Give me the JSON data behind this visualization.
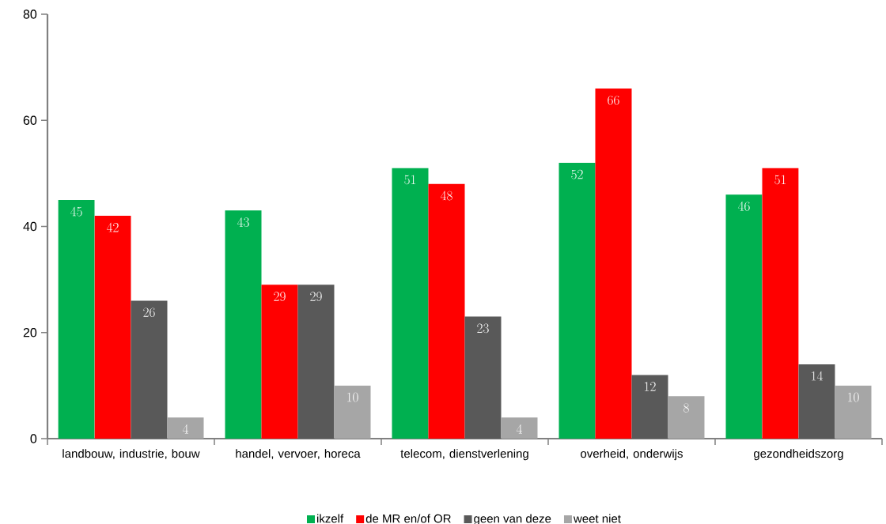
{
  "chart_data": {
    "type": "bar",
    "categories": [
      "landbouw, industrie, bouw",
      "handel, vervoer, horeca",
      "telecom, dienstverlening",
      "overheid, onderwijs",
      "gezondheidszorg"
    ],
    "series": [
      {
        "name": "ikzelf",
        "color": "#00b050",
        "values": [
          45,
          43,
          51,
          52,
          46
        ]
      },
      {
        "name": "de MR en/of OR",
        "color": "#ff0000",
        "values": [
          42,
          29,
          48,
          66,
          51
        ]
      },
      {
        "name": "geen van deze",
        "color": "#595959",
        "values": [
          26,
          29,
          23,
          12,
          14
        ]
      },
      {
        "name": "weet niet",
        "color": "#a6a6a6",
        "values": [
          4,
          10,
          4,
          8,
          10
        ]
      }
    ],
    "ylim": [
      0,
      80
    ],
    "yticks": [
      0,
      20,
      40,
      60,
      80
    ],
    "data_labels": true,
    "legend": "bottom"
  }
}
